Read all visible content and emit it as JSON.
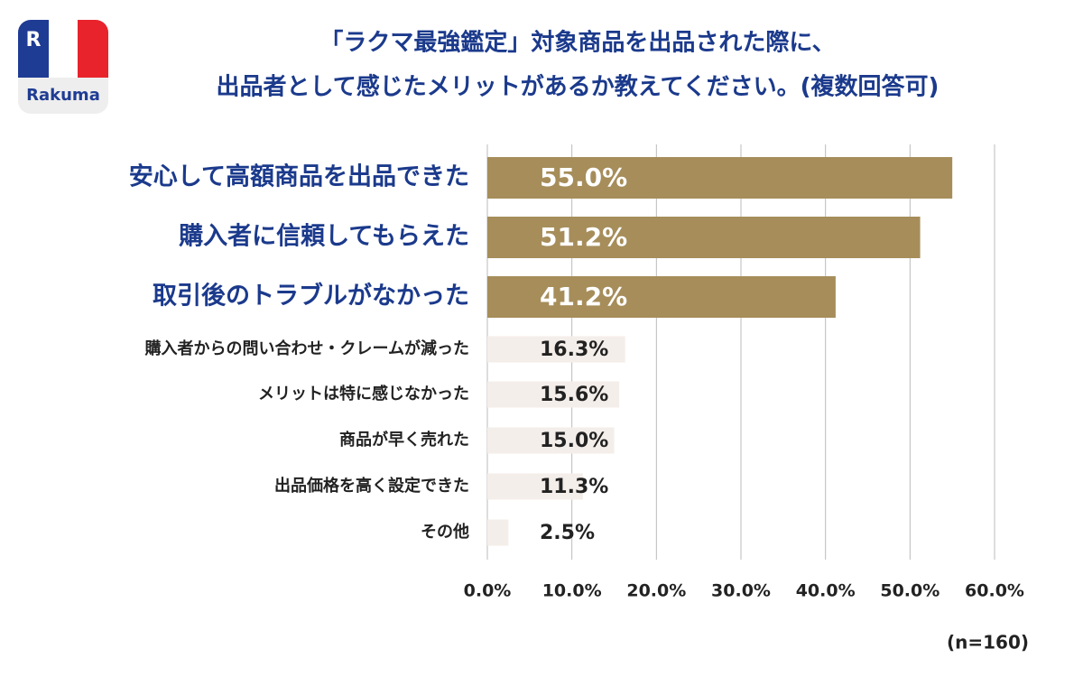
{
  "logo": {
    "mark": "R",
    "name": "Rakuma"
  },
  "chart_data": {
    "type": "bar",
    "orientation": "horizontal",
    "title": [
      "「ラクマ最強鑑定」対象商品を出品された際に、",
      "出品者として感じたメリットがあるか教えてください。(複数回答可)"
    ],
    "categories": [
      "安心して高額商品を出品できた",
      "購入者に信頼してもらえた",
      "取引後のトラブルがなかった",
      "購入者からの問い合わせ・クレームが減った",
      "メリットは特に感じなかった",
      "商品が早く売れた",
      "出品価格を高く設定できた",
      "その他"
    ],
    "values": [
      55.0,
      51.2,
      41.2,
      16.3,
      15.6,
      15.0,
      11.3,
      2.5
    ],
    "value_labels": [
      "55.0%",
      "51.2%",
      "41.2%",
      "16.3%",
      "15.6%",
      "15.0%",
      "11.3%",
      "2.5%"
    ],
    "emphasized": [
      true,
      true,
      true,
      false,
      false,
      false,
      false,
      false
    ],
    "colors": [
      "#a68d5a",
      "#a68d5a",
      "#a68d5a",
      "#f4eeea",
      "#f4eeea",
      "#f4eeea",
      "#f4eeea",
      "#f4eeea"
    ],
    "xlim": [
      0,
      60
    ],
    "xticks": [
      {
        "value": 0,
        "label": "0.0%"
      },
      {
        "value": 10,
        "label": "10.0%"
      },
      {
        "value": 20,
        "label": "20.0%"
      },
      {
        "value": 30,
        "label": "30.0%"
      },
      {
        "value": 40,
        "label": "40.0%"
      },
      {
        "value": 50,
        "label": "50.0%"
      },
      {
        "value": 60,
        "label": "60.0%"
      }
    ],
    "grid": true,
    "note": "(n=160)"
  }
}
